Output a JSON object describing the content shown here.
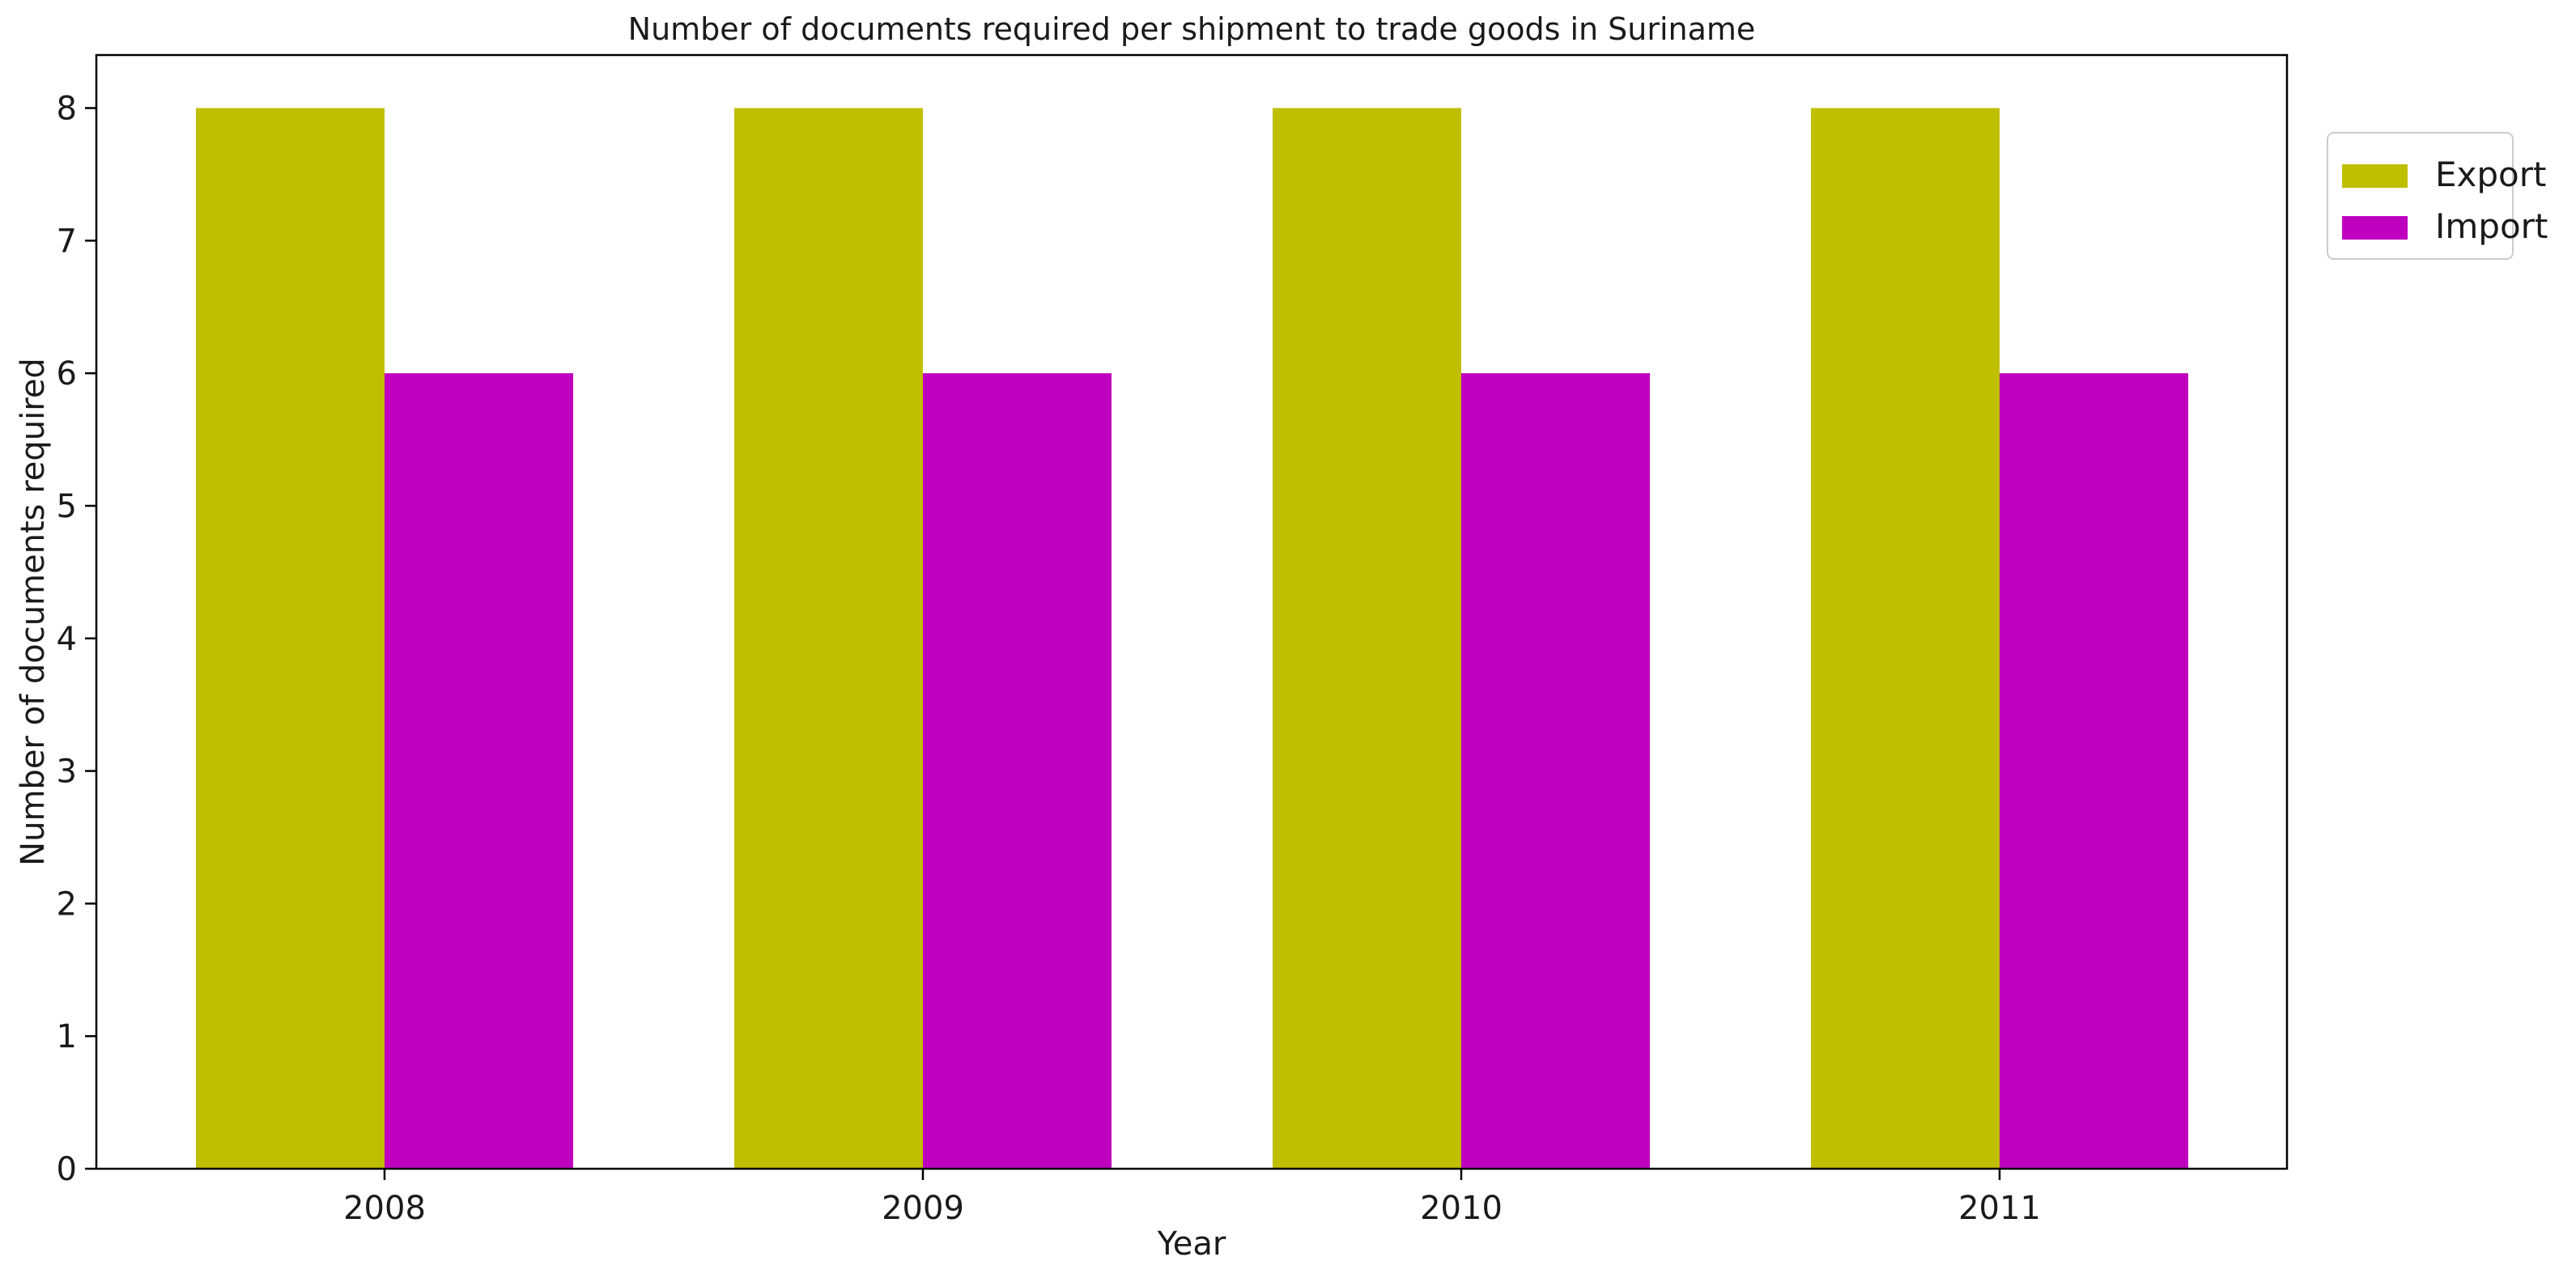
{
  "chart_data": {
    "type": "bar",
    "title": "Number of documents required per shipment to trade goods in Suriname",
    "xlabel": "Year",
    "ylabel": "Number of documents required",
    "categories": [
      "2008",
      "2009",
      "2010",
      "2011"
    ],
    "series": [
      {
        "name": "Export",
        "values": [
          8,
          8,
          8,
          8
        ],
        "color": "#bfbf00"
      },
      {
        "name": "Import",
        "values": [
          6,
          6,
          6,
          6
        ],
        "color": "#bf00bf"
      }
    ],
    "ylim": [
      0,
      8.4
    ],
    "yticks": [
      "0",
      "1",
      "2",
      "3",
      "4",
      "5",
      "6",
      "7",
      "8"
    ],
    "grid": false,
    "legend_position": "upper-right, outside plot"
  }
}
